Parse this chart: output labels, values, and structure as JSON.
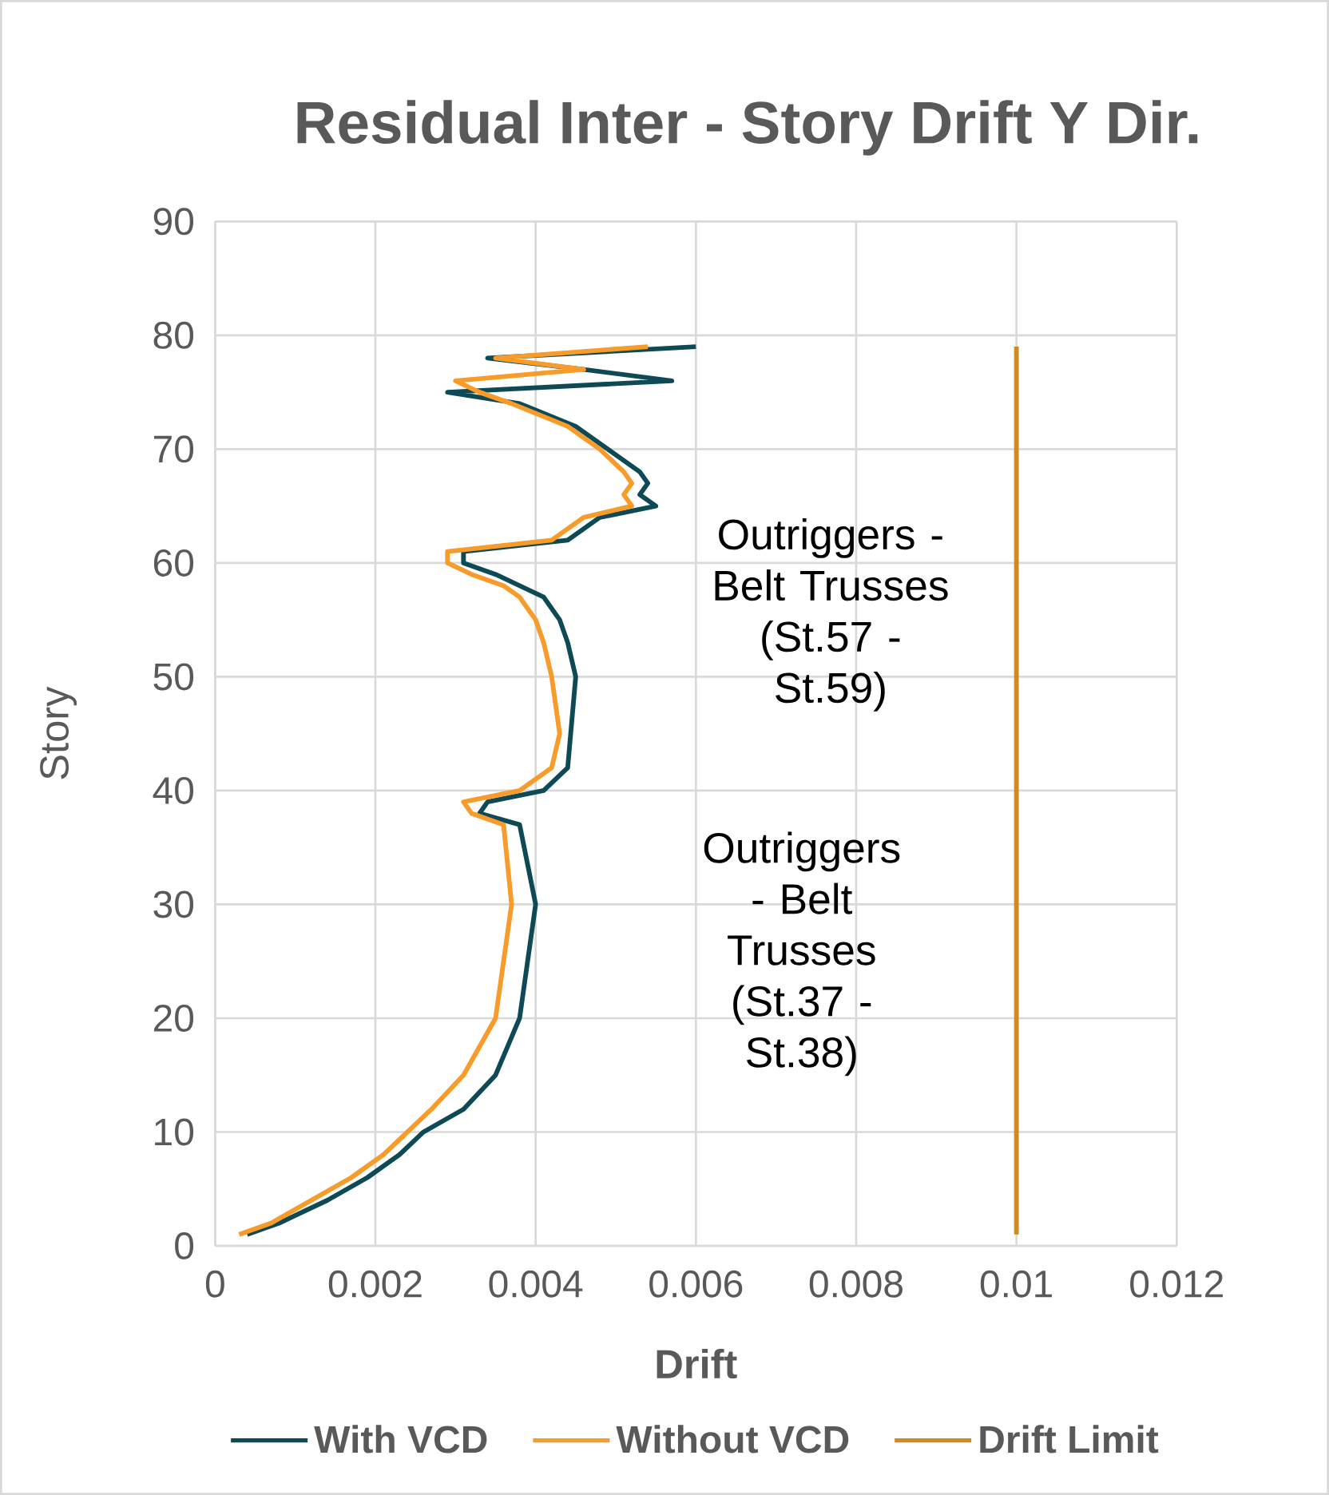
{
  "chart_data": {
    "type": "line",
    "title": "Residual Inter - Story Drift Y Dir.",
    "xlabel": "Drift",
    "ylabel": "Story",
    "xlim": [
      0,
      0.012
    ],
    "xticks": [
      0,
      0.002,
      0.004,
      0.006,
      0.008,
      0.01,
      0.012
    ],
    "ylim": [
      0,
      90
    ],
    "yticks": [
      0,
      10,
      20,
      30,
      40,
      50,
      60,
      70,
      80,
      90
    ],
    "grid": true,
    "legend": "bottom",
    "marker": "none",
    "series": [
      {
        "name": "With VCD",
        "color": "#0d4a55",
        "values": [
          1,
          2,
          4,
          6,
          8,
          10,
          12,
          15,
          20,
          25,
          30,
          37,
          38,
          39,
          40,
          42,
          50,
          53,
          55,
          57,
          59,
          60,
          61,
          62,
          63,
          64,
          65,
          66,
          67,
          68,
          70,
          72,
          74,
          75,
          76,
          77,
          78,
          79
        ],
        "x": [
          0.0004,
          0.0008,
          0.0014,
          0.0019,
          0.0023,
          0.0026,
          0.0031,
          0.0035,
          0.0038,
          0.0039,
          0.004,
          0.0038,
          0.0033,
          0.0034,
          0.0041,
          0.0044,
          0.0045,
          0.0044,
          0.0043,
          0.0041,
          0.0035,
          0.0031,
          0.0031,
          0.0044,
          0.0046,
          0.0048,
          0.0055,
          0.0053,
          0.0054,
          0.0053,
          0.0049,
          0.0045,
          0.0038,
          0.0029,
          0.0057,
          0.0046,
          0.0034,
          0.006
        ]
      },
      {
        "name": "Without VCD",
        "color": "#f79b2a",
        "values": [
          1,
          2,
          4,
          6,
          8,
          10,
          12,
          15,
          20,
          25,
          30,
          37,
          38,
          39,
          40,
          42,
          45,
          50,
          53,
          55,
          57,
          58,
          59,
          60,
          61,
          62,
          63,
          64,
          65,
          66,
          67,
          68,
          70,
          72,
          74,
          75,
          76,
          77,
          78,
          79
        ],
        "x": [
          0.0003,
          0.0007,
          0.0012,
          0.0017,
          0.0021,
          0.0024,
          0.0027,
          0.0031,
          0.0035,
          0.0036,
          0.0037,
          0.0036,
          0.0032,
          0.0031,
          0.0038,
          0.0042,
          0.0043,
          0.0042,
          0.0041,
          0.004,
          0.0038,
          0.0036,
          0.0032,
          0.0029,
          0.0029,
          0.0042,
          0.0044,
          0.0046,
          0.0052,
          0.0051,
          0.0052,
          0.0051,
          0.0048,
          0.0044,
          0.0037,
          0.0033,
          0.003,
          0.0046,
          0.0035,
          0.0054
        ]
      },
      {
        "name": "Drift Limit",
        "color": "#d08a25",
        "values": [
          1,
          79
        ],
        "x": [
          0.01,
          0.01
        ]
      }
    ],
    "annotations": [
      "Outriggers - Belt Trusses (St.57 - St.59)",
      "Outriggers - Belt Trusses (St.37 - St.38)"
    ]
  }
}
